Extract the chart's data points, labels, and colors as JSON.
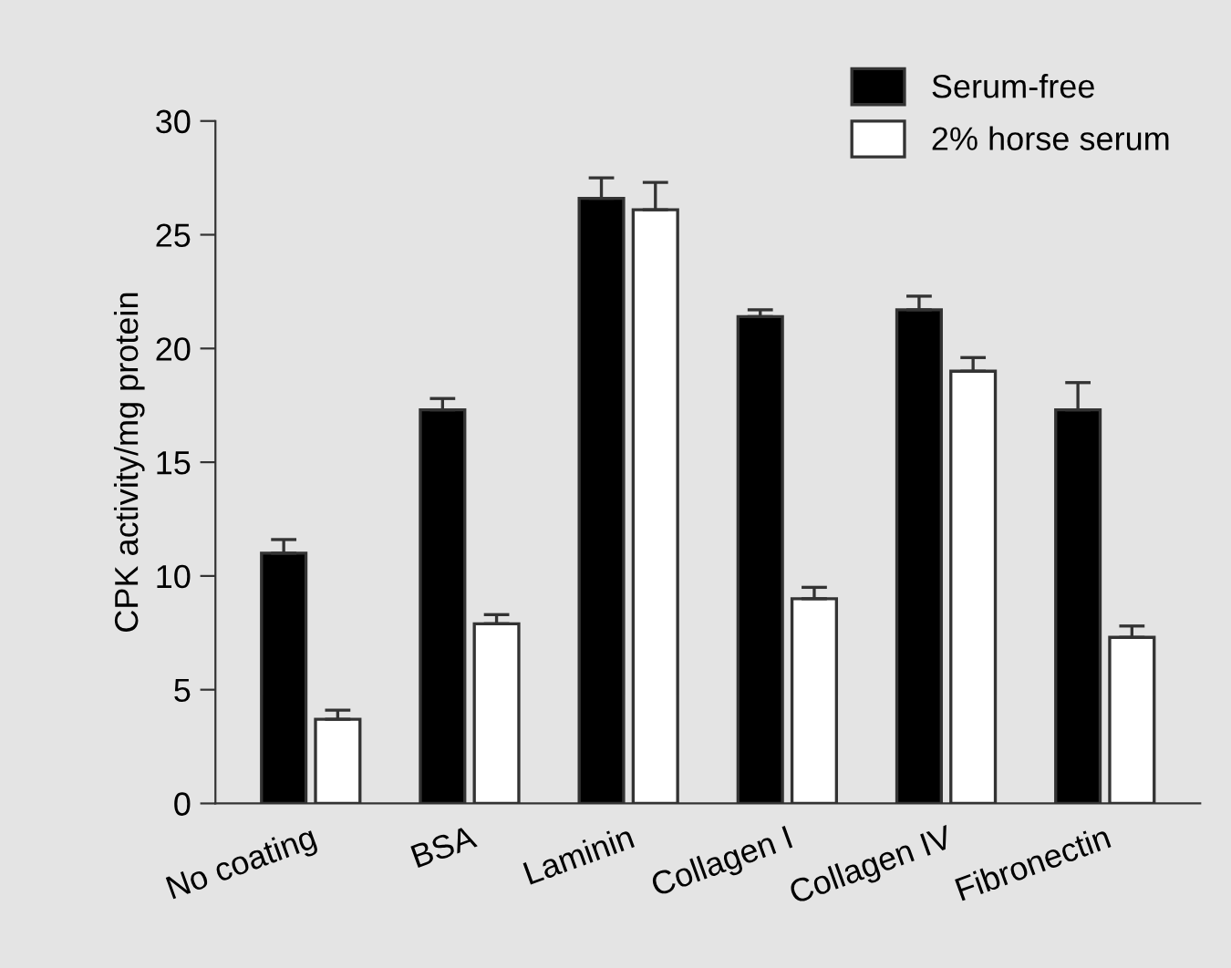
{
  "chart_data": {
    "type": "bar",
    "ylabel": "CPK activity/mg protein",
    "categories": [
      "No coating",
      "BSA",
      "Laminin",
      "Collagen I",
      "Collagen IV",
      "Fibronectin"
    ],
    "series": [
      {
        "name": "Serum-free",
        "color": "#000000",
        "values": [
          11.0,
          17.3,
          26.6,
          21.4,
          21.7,
          17.3
        ],
        "errors": [
          [
            11.0,
            11.6
          ],
          [
            17.3,
            17.8
          ],
          [
            26.6,
            27.5
          ],
          [
            21.4,
            21.7
          ],
          [
            21.7,
            22.3
          ],
          [
            17.3,
            18.5
          ]
        ]
      },
      {
        "name": "2% horse serum",
        "color": "#ffffff",
        "values": [
          3.7,
          7.9,
          26.1,
          9.0,
          19.0,
          7.3
        ],
        "errors": [
          [
            3.7,
            4.1
          ],
          [
            7.9,
            8.3
          ],
          [
            26.1,
            27.3
          ],
          [
            9.0,
            9.5
          ],
          [
            19.0,
            19.6
          ],
          [
            7.3,
            7.8
          ]
        ]
      }
    ],
    "ylim": [
      0,
      30
    ],
    "yticks": [
      0,
      5,
      10,
      15,
      20,
      25,
      30
    ],
    "grid": false,
    "legend": "top right"
  }
}
